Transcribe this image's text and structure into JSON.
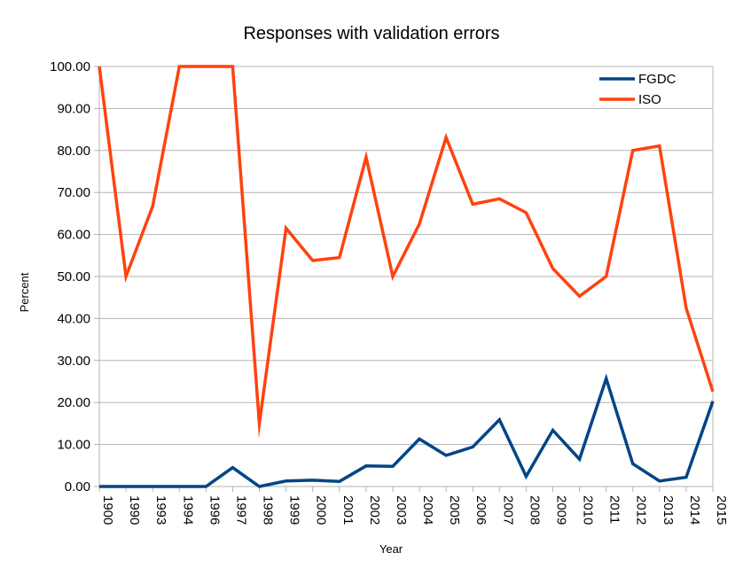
{
  "chart_data": {
    "type": "line",
    "title": "Responses with validation errors",
    "xlabel": "Year",
    "ylabel": "Percent",
    "ylim": [
      0,
      100
    ],
    "yticks": [
      "0.00",
      "10.00",
      "20.00",
      "30.00",
      "40.00",
      "50.00",
      "60.00",
      "70.00",
      "80.00",
      "90.00",
      "100.00"
    ],
    "categories": [
      "1900",
      "1990",
      "1993",
      "1994",
      "1996",
      "1997",
      "1998",
      "1999",
      "2000",
      "2001",
      "2002",
      "2003",
      "2004",
      "2005",
      "2006",
      "2007",
      "2008",
      "2009",
      "2010",
      "2011",
      "2012",
      "2013",
      "2014",
      "2015"
    ],
    "grid": true,
    "legend_position": "top-right",
    "series": [
      {
        "name": "FGDC",
        "color": "#004586",
        "values": [
          0,
          0,
          0,
          0,
          0,
          4.5,
          0,
          1.3,
          1.5,
          1.2,
          4.9,
          4.8,
          11.3,
          7.4,
          9.4,
          15.9,
          2.4,
          13.4,
          6.5,
          25.7,
          5.4,
          1.3,
          2.2,
          20.3
        ]
      },
      {
        "name": "ISO",
        "color": "#ff420e",
        "values": [
          100,
          50,
          66.7,
          100,
          100,
          100,
          15,
          61.5,
          53.8,
          54.5,
          78.4,
          50,
          62.5,
          83.1,
          67.2,
          68.5,
          65.2,
          51.9,
          45.3,
          50,
          80,
          81.1,
          42.5,
          22.6
        ]
      }
    ]
  }
}
